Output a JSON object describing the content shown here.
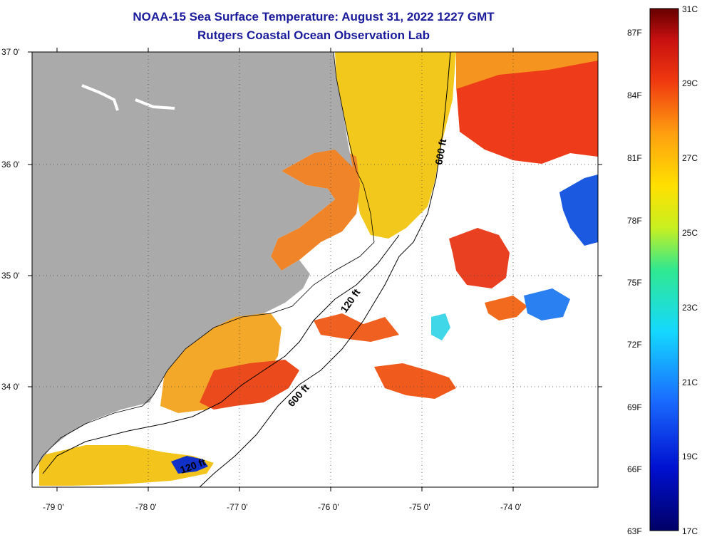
{
  "header": {
    "title": "NOAA-15 Sea Surface Temperature:  August 31, 2022 1227 GMT",
    "subtitle": "Rutgers Coastal Ocean Observation Lab"
  },
  "axes": {
    "x_ticks": [
      "-79 0'",
      "-78 0'",
      "-77 0'",
      "-76 0'",
      "-75 0'",
      "-74 0'"
    ],
    "y_ticks": [
      "37 0'",
      "36 0'",
      "35 0'",
      "34 0'"
    ]
  },
  "contours": {
    "label_600_north": "600 ft",
    "label_120_mid": "120 ft",
    "label_600_south": "600 ft",
    "label_120_south": "120 ft"
  },
  "colorbar": {
    "fahrenheit": [
      "87F",
      "84F",
      "81F",
      "78F",
      "75F",
      "72F",
      "69F",
      "66F",
      "63F"
    ],
    "celsius": [
      "31C",
      "29C",
      "27C",
      "25C",
      "23C",
      "21C",
      "19C",
      "17C"
    ]
  },
  "colors": {
    "land": "#aaaaaa",
    "cloud": "#ffffff",
    "warm": "#ee3b1a",
    "orange": "#f5941e",
    "yellow": "#f2d21a",
    "cold": "#1030c8"
  }
}
